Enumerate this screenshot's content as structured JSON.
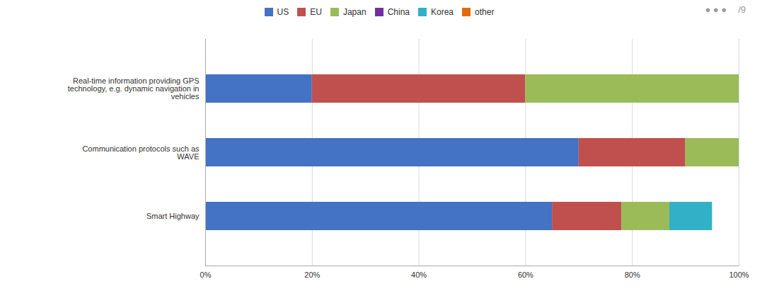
{
  "chart_data": {
    "type": "bar",
    "orientation": "horizontal",
    "stacked": true,
    "categories": [
      "Real-time information providing GPS\ntechnology, e.g. dynamic navigation in\nvehicles",
      "Communication protocols such as\nWAVE",
      "Smart Highway"
    ],
    "series": [
      {
        "name": "US",
        "color": "#4472C4",
        "values": [
          0.2,
          0.7,
          0.65
        ]
      },
      {
        "name": "EU",
        "color": "#C0504D",
        "values": [
          0.4,
          0.2,
          0.13
        ]
      },
      {
        "name": "Japan",
        "color": "#9BBB59",
        "values": [
          0.4,
          0.1,
          0.09
        ]
      },
      {
        "name": "China",
        "color": "#7030A0",
        "values": [
          0.0,
          0.0,
          0.0
        ]
      },
      {
        "name": "Korea",
        "color": "#31B0C8",
        "values": [
          0.0,
          0.0,
          0.08
        ]
      },
      {
        "name": "other",
        "color": "#E36C09",
        "values": [
          0.0,
          0.0,
          0.0
        ]
      }
    ],
    "xlim": [
      0,
      1.0
    ],
    "xticks": [
      {
        "value": 0.0,
        "label": "0%"
      },
      {
        "value": 0.2,
        "label": "20%"
      },
      {
        "value": 0.4,
        "label": "40%"
      },
      {
        "value": 0.6,
        "label": "60%"
      },
      {
        "value": 0.8,
        "label": "80%"
      },
      {
        "value": 1.0,
        "label": "100%"
      }
    ],
    "grid": true,
    "legend": "top",
    "annotations": [
      "● ● ●",
      "/9"
    ]
  }
}
